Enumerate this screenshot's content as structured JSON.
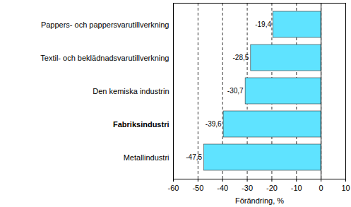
{
  "chart_data": {
    "type": "bar",
    "orientation": "horizontal",
    "categories": [
      "Pappers- och pappersvarutillverkning",
      "Textil- och beklädnadsvarutillverkning",
      "Den kemiska industrin",
      "Fabriksindustri",
      "Metallindustri"
    ],
    "values": [
      -19.4,
      -28.5,
      -30.7,
      -39.6,
      -47.5
    ],
    "value_labels": [
      "-19,4",
      "-28,5",
      "-30,7",
      "-39,6",
      "-47,5"
    ],
    "data_labels": true,
    "color": "#5fe3ff",
    "xlabel": "Förändring, %",
    "xlim": [
      -60,
      10
    ],
    "xticks": [
      -60,
      -50,
      -40,
      -30,
      -20,
      -10,
      0,
      10
    ],
    "grid": true
  }
}
